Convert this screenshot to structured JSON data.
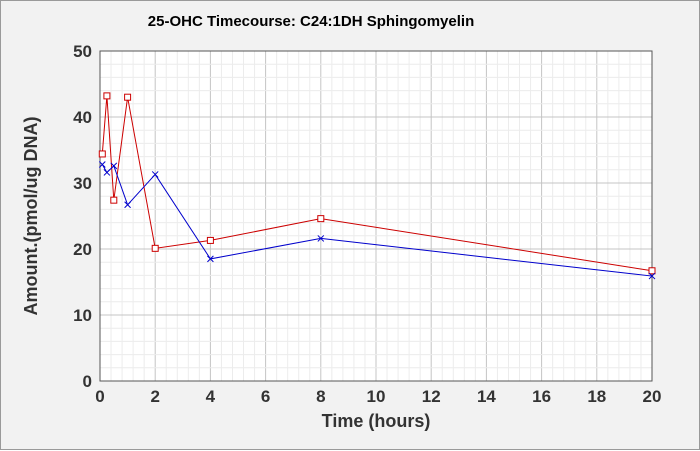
{
  "chart_data": {
    "type": "line",
    "title": "25-OHC Timecourse: C24:1DH Sphingomyelin",
    "xlabel": "Time (hours)",
    "ylabel": "Amount.(pmol/ug DNA)",
    "xlim": [
      0,
      20
    ],
    "ylim": [
      0,
      50
    ],
    "xticks": [
      0,
      2,
      4,
      6,
      8,
      10,
      12,
      14,
      16,
      18,
      20
    ],
    "yticks": [
      0,
      10,
      20,
      30,
      40,
      50
    ],
    "grid": true,
    "legend": "none",
    "series": [
      {
        "color": "#cc0000",
        "marker": "square",
        "x": [
          0.083,
          0.25,
          0.5,
          1,
          2,
          4,
          8,
          20
        ],
        "y": [
          34.4,
          43.2,
          27.4,
          43.0,
          20.1,
          21.3,
          24.6,
          16.7
        ]
      },
      {
        "color": "#0000cc",
        "marker": "x",
        "x": [
          0.083,
          0.25,
          0.5,
          1,
          2,
          4,
          8,
          20
        ],
        "y": [
          32.8,
          31.6,
          32.6,
          26.7,
          31.3,
          18.5,
          21.6,
          15.9
        ]
      }
    ]
  }
}
